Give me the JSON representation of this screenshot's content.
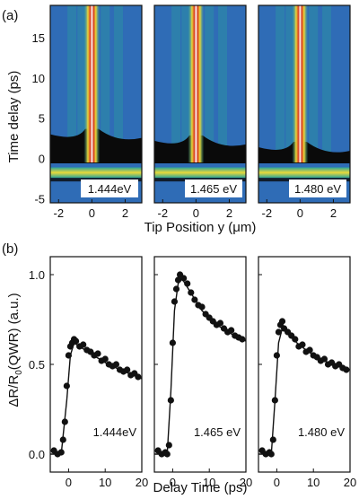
{
  "chart_data": [
    {
      "panel": "(a)",
      "type": "heatmap",
      "ylabel": "Time delay (ps)",
      "xlabel": "Tip Position y (μm)",
      "xlim": [
        -2.5,
        3
      ],
      "ylim": [
        -5.5,
        19
      ],
      "yticks": [
        "-5",
        "0",
        "5",
        "10",
        "15"
      ],
      "xticks": [
        "-2",
        "0",
        "2"
      ],
      "subpanels": [
        {
          "energy_label": "1.444eV",
          "peak_x": 0
        },
        {
          "energy_label": "1.465 eV",
          "peak_x": 0
        },
        {
          "energy_label": "1.480 eV",
          "peak_x": 0
        }
      ]
    },
    {
      "panel": "(b)",
      "type": "scatter",
      "ylabel": "ΔR/R",
      "ylabel_sub": "0",
      "ylabel_tail": "(QWR) (a.u.)",
      "xlabel": "Delay Time (ps)",
      "xlim": [
        -5,
        20
      ],
      "ylim": [
        -0.1,
        1.1
      ],
      "yticks": [
        "0.0",
        "0.5",
        "1.0"
      ],
      "xticks": [
        "0",
        "10",
        "20"
      ],
      "subpanels": [
        {
          "energy_label": "1.444eV",
          "points": [
            [
              -4,
              0.02
            ],
            [
              -3,
              0.0
            ],
            [
              -2,
              0.01
            ],
            [
              -1.5,
              0.08
            ],
            [
              -1,
              0.18
            ],
            [
              -0.5,
              0.38
            ],
            [
              0,
              0.55
            ],
            [
              0.5,
              0.6
            ],
            [
              1,
              0.62
            ],
            [
              1.5,
              0.64
            ],
            [
              2,
              0.63
            ],
            [
              3,
              0.6
            ],
            [
              4,
              0.61
            ],
            [
              5,
              0.58
            ],
            [
              6,
              0.57
            ],
            [
              7,
              0.55
            ],
            [
              8,
              0.56
            ],
            [
              9,
              0.52
            ],
            [
              10,
              0.53
            ],
            [
              11,
              0.5
            ],
            [
              12,
              0.49
            ],
            [
              13,
              0.5
            ],
            [
              14,
              0.47
            ],
            [
              15,
              0.46
            ],
            [
              16,
              0.47
            ],
            [
              17,
              0.44
            ],
            [
              18,
              0.45
            ],
            [
              19,
              0.43
            ]
          ],
          "fit": [
            [
              -5,
              0.0
            ],
            [
              -2,
              0.0
            ],
            [
              -0.5,
              0.3
            ],
            [
              0.5,
              0.55
            ],
            [
              1.5,
              0.62
            ],
            [
              3,
              0.6
            ],
            [
              6,
              0.56
            ],
            [
              10,
              0.51
            ],
            [
              14,
              0.47
            ],
            [
              20,
              0.42
            ]
          ]
        },
        {
          "energy_label": "1.465 eV",
          "points": [
            [
              -4,
              0.02
            ],
            [
              -3,
              0.0
            ],
            [
              -2,
              0.01
            ],
            [
              -1.5,
              0.0
            ],
            [
              -1,
              0.05
            ],
            [
              -0.5,
              0.3
            ],
            [
              0,
              0.62
            ],
            [
              0.5,
              0.85
            ],
            [
              1,
              0.92
            ],
            [
              1.5,
              0.97
            ],
            [
              2,
              1.0
            ],
            [
              3,
              0.98
            ],
            [
              4,
              0.95
            ],
            [
              5,
              0.9
            ],
            [
              6,
              0.86
            ],
            [
              7,
              0.83
            ],
            [
              8,
              0.82
            ],
            [
              9,
              0.78
            ],
            [
              10,
              0.76
            ],
            [
              11,
              0.74
            ],
            [
              12,
              0.72
            ],
            [
              13,
              0.73
            ],
            [
              14,
              0.7
            ],
            [
              15,
              0.68
            ],
            [
              16,
              0.69
            ],
            [
              17,
              0.66
            ],
            [
              18,
              0.65
            ],
            [
              19,
              0.64
            ]
          ],
          "fit": [
            [
              -5,
              0.0
            ],
            [
              -1.5,
              0.0
            ],
            [
              -0.5,
              0.35
            ],
            [
              0.5,
              0.8
            ],
            [
              1.5,
              0.95
            ],
            [
              2.5,
              0.98
            ],
            [
              4,
              0.93
            ],
            [
              8,
              0.8
            ],
            [
              12,
              0.72
            ],
            [
              16,
              0.67
            ],
            [
              20,
              0.63
            ]
          ]
        },
        {
          "energy_label": "1.480 eV",
          "points": [
            [
              -4,
              0.02
            ],
            [
              -3,
              0.0
            ],
            [
              -2,
              0.01
            ],
            [
              -1.5,
              0.0
            ],
            [
              -1,
              0.08
            ],
            [
              -0.5,
              0.3
            ],
            [
              0,
              0.55
            ],
            [
              0.5,
              0.68
            ],
            [
              1,
              0.72
            ],
            [
              1.5,
              0.74
            ],
            [
              2,
              0.7
            ],
            [
              3,
              0.68
            ],
            [
              4,
              0.66
            ],
            [
              5,
              0.64
            ],
            [
              6,
              0.6
            ],
            [
              7,
              0.61
            ],
            [
              8,
              0.57
            ],
            [
              9,
              0.58
            ],
            [
              10,
              0.55
            ],
            [
              11,
              0.54
            ],
            [
              12,
              0.52
            ],
            [
              13,
              0.53
            ],
            [
              14,
              0.5
            ],
            [
              15,
              0.51
            ],
            [
              16,
              0.49
            ],
            [
              17,
              0.5
            ],
            [
              18,
              0.48
            ],
            [
              19,
              0.47
            ]
          ],
          "fit": [
            [
              -5,
              0.0
            ],
            [
              -1.5,
              0.0
            ],
            [
              -0.5,
              0.3
            ],
            [
              0.5,
              0.62
            ],
            [
              1.5,
              0.7
            ],
            [
              3,
              0.67
            ],
            [
              6,
              0.61
            ],
            [
              10,
              0.55
            ],
            [
              14,
              0.51
            ],
            [
              20,
              0.47
            ]
          ]
        }
      ]
    }
  ],
  "colors": {
    "background": "#2f6cb6",
    "low": "#0a0a0a",
    "mid": "#2aa49a",
    "high": "#e8d83a",
    "peak": "#d83a1e",
    "core": "#ffffff"
  }
}
